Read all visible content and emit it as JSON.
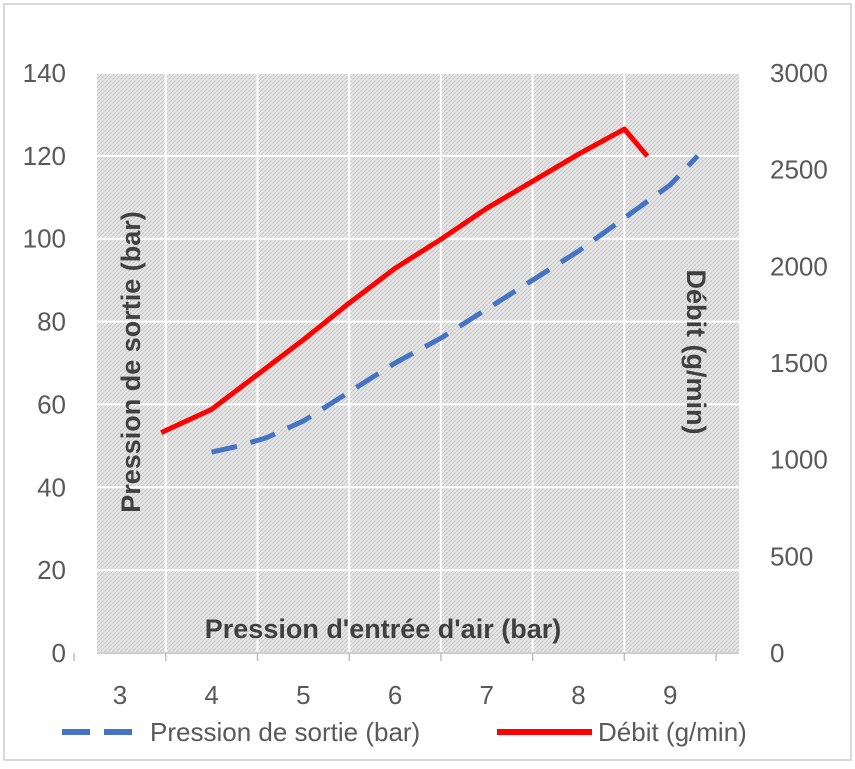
{
  "chart_data": {
    "type": "line",
    "title": "",
    "xlabel": "Pression d'entrée d'air (bar)",
    "ylabel": "Pression de sortie (bar)",
    "y2label": "Débit (g/min)",
    "xlim": [
      2.75,
      9.75
    ],
    "ylim": [
      0,
      140
    ],
    "y2lim": [
      0,
      3000
    ],
    "x_ticks": [
      "3",
      "4",
      "5",
      "6",
      "7",
      "8",
      "9"
    ],
    "y_ticks": [
      "0",
      "20",
      "40",
      "60",
      "80",
      "100",
      "120",
      "140"
    ],
    "y2_ticks": [
      "0",
      "500",
      "1000",
      "1500",
      "2000",
      "2500",
      "3000"
    ],
    "grid": true,
    "legend_position": "bottom",
    "series": [
      {
        "name": "Pression de sortie (bar)",
        "axis": "left",
        "style": "dashed",
        "color": "#4472C4",
        "x": [
          4.0,
          4.3,
          4.6,
          5.0,
          5.5,
          6.0,
          6.5,
          7.0,
          7.5,
          8.0,
          8.5,
          9.0,
          9.3
        ],
        "y": [
          48.5,
          50,
          52,
          56,
          63,
          70,
          76,
          83,
          90,
          97,
          105,
          113,
          120
        ]
      },
      {
        "name": "Débit (g/min)",
        "axis": "right",
        "style": "solid",
        "color": "#FF0000",
        "x": [
          3.45,
          4.0,
          4.5,
          5.0,
          5.5,
          6.0,
          6.5,
          7.0,
          7.5,
          8.0,
          8.5,
          8.75
        ],
        "y": [
          1140,
          1260,
          1440,
          1620,
          1810,
          1990,
          2140,
          2300,
          2440,
          2580,
          2710,
          2570
        ]
      }
    ]
  }
}
